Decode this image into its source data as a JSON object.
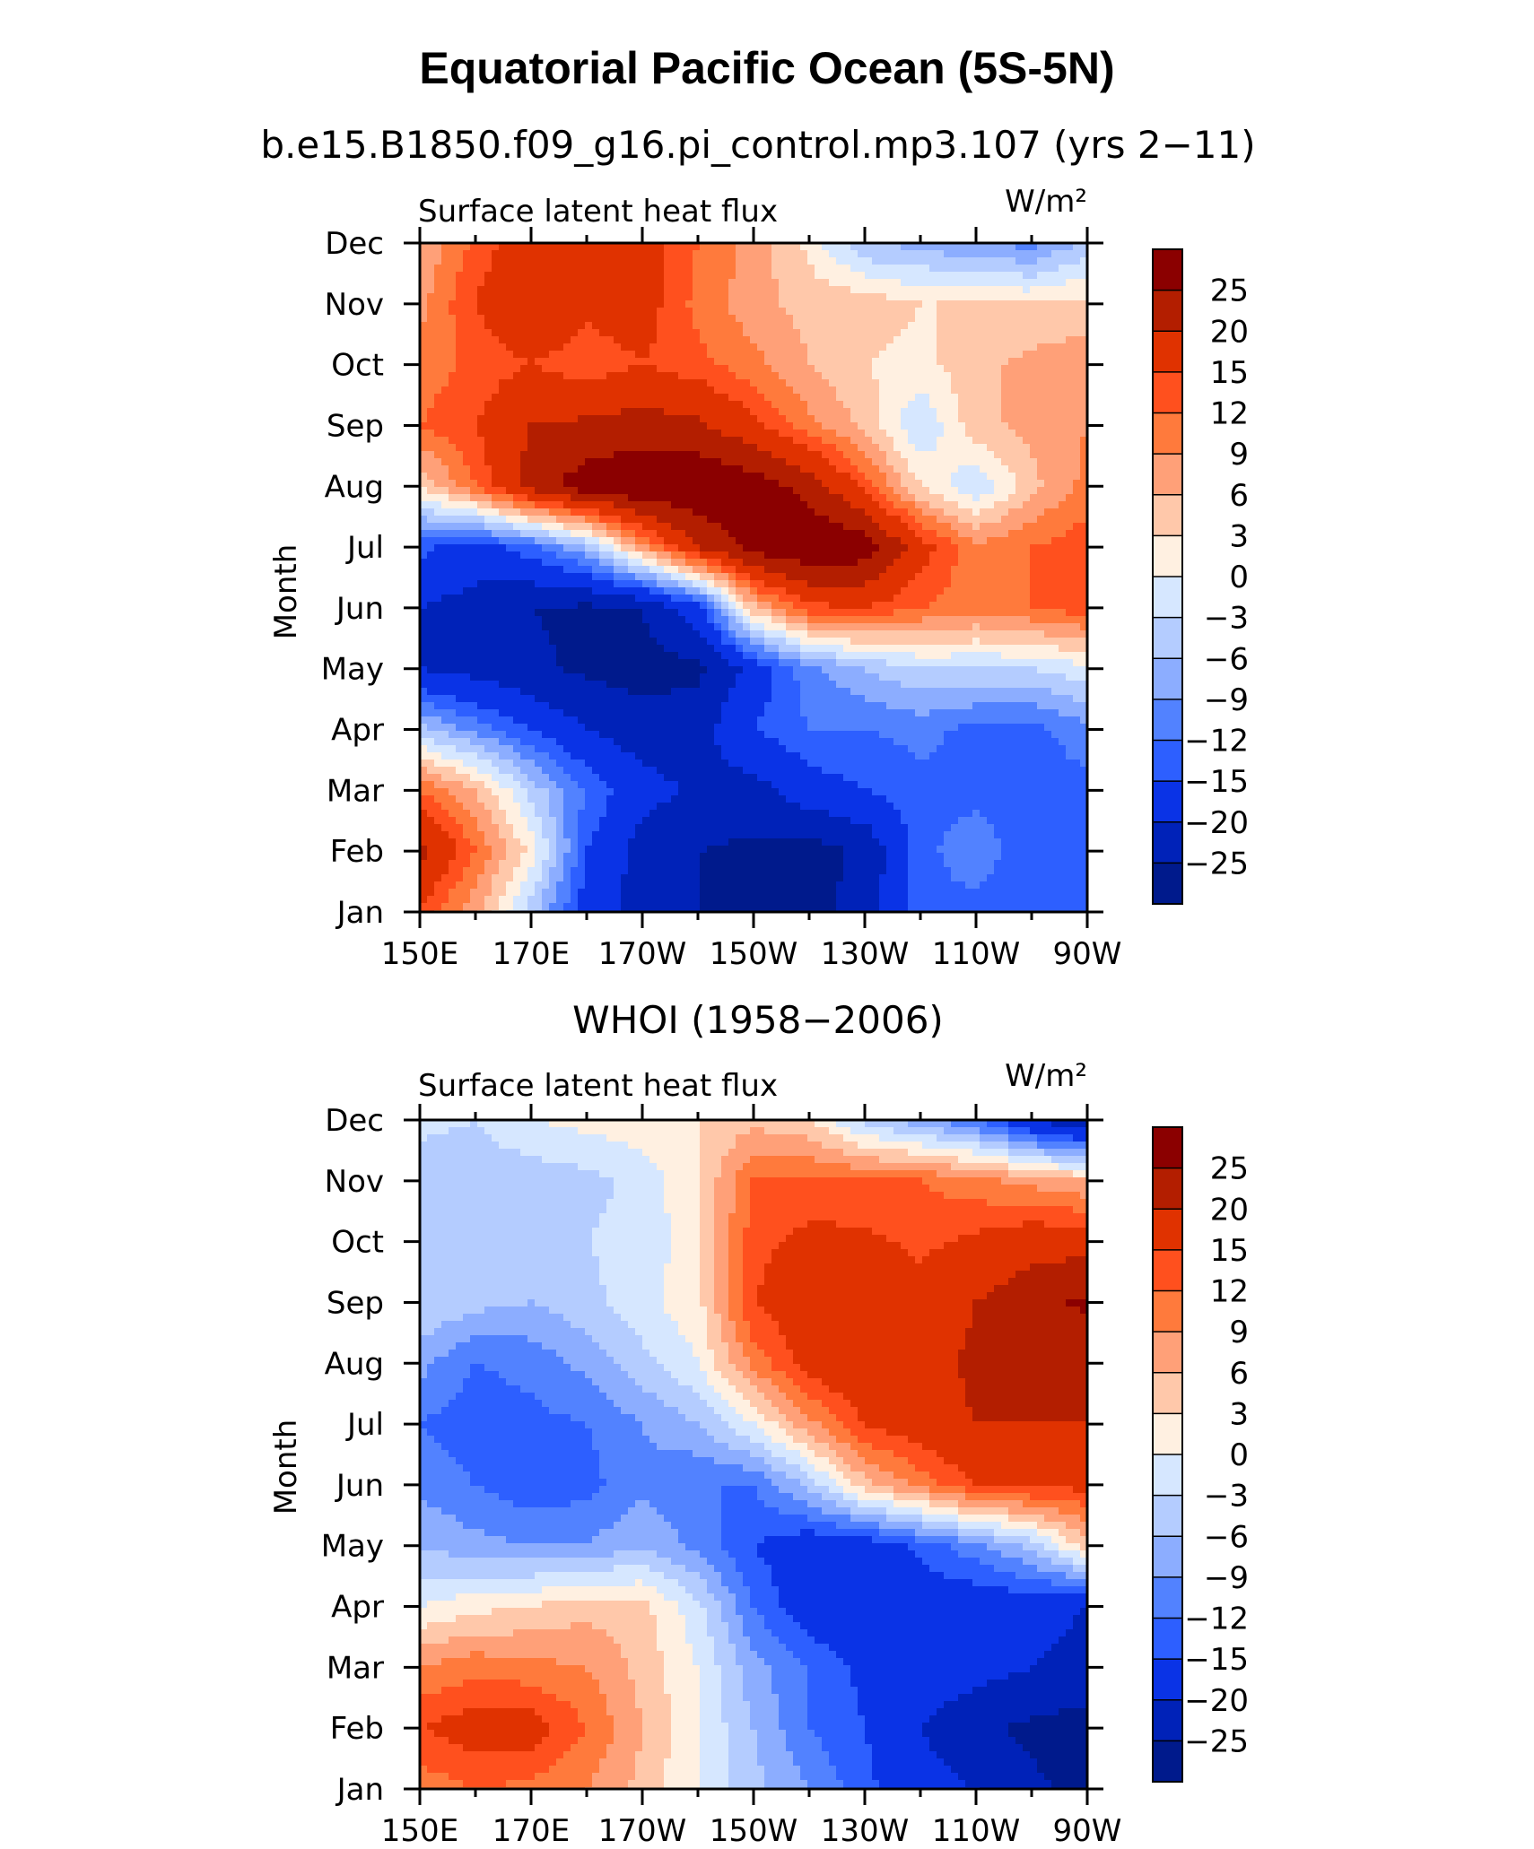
{
  "page": {
    "title": "Equatorial Pacific Ocean (5S-5N)"
  },
  "chart_data": [
    {
      "type": "heatmap",
      "title": "b.e15.B1850.f09_g16.pi_control.mp3.107 (yrs 2−11)",
      "left_label": "Surface latent heat flux",
      "units": "W/m²",
      "ylabel": "Month",
      "x_ticks": [
        "150E",
        "170E",
        "170W",
        "150W",
        "130W",
        "110W",
        "90W"
      ],
      "y_ticks": [
        "Jan",
        "Feb",
        "Mar",
        "Apr",
        "May",
        "Jun",
        "Jul",
        "Aug",
        "Sep",
        "Oct",
        "Nov",
        "Dec"
      ],
      "colorbar": {
        "levels": [
          "25",
          "20",
          "15",
          "12",
          "9",
          "6",
          "3",
          "0",
          "−3",
          "−6",
          "−9",
          "−12",
          "−15",
          "−20",
          "−25"
        ],
        "colors": [
          "#8b0000",
          "#b31e00",
          "#e03200",
          "#ff501e",
          "#ff7a3c",
          "#ffa078",
          "#ffc8aa",
          "#fff0e1",
          "#d6e7ff",
          "#b4ccff",
          "#8cadff",
          "#5282ff",
          "#2d5fff",
          "#0a33e6",
          "#0022b8",
          "#001a8c"
        ]
      },
      "x": [
        150,
        160,
        170,
        180,
        190,
        200,
        210,
        220,
        230,
        240,
        250,
        260,
        270
      ],
      "y": [
        "Jan",
        "Feb",
        "Mar",
        "Apr",
        "May",
        "Jun",
        "Jul",
        "Aug",
        "Sep",
        "Oct",
        "Nov",
        "Dec"
      ],
      "z": [
        [
          14,
          7,
          -5,
          -17,
          -22,
          -25,
          -27,
          -28,
          -22,
          -13,
          -13,
          -15,
          -13
        ],
        [
          22,
          12,
          2,
          -15,
          -22,
          -25,
          -26,
          -27,
          -24,
          -13,
          -10,
          -14,
          -13
        ],
        [
          12,
          6,
          -4,
          -12,
          -18,
          -21,
          -22,
          -17,
          -15,
          -13,
          -13,
          -14,
          -13
        ],
        [
          -5,
          -10,
          -15,
          -20,
          -23,
          -22,
          -15,
          -12,
          -12,
          -11,
          -13,
          -13,
          -10
        ],
        [
          -20,
          -22,
          -24,
          -26,
          -27,
          -26,
          -18,
          -10,
          -6,
          -3,
          -3,
          -3,
          -1
        ],
        [
          -20,
          -22,
          -25,
          -26,
          -25,
          -17,
          5,
          14,
          15,
          12,
          10,
          12,
          14
        ],
        [
          -14,
          -17,
          -13,
          -6,
          8,
          20,
          27,
          30,
          28,
          17,
          10,
          12,
          14
        ],
        [
          3,
          12,
          22,
          28,
          30,
          30,
          28,
          23,
          14,
          3,
          -3,
          5,
          10
        ],
        [
          12,
          15,
          20,
          21,
          22,
          21,
          16,
          10,
          5,
          -3,
          5,
          7,
          9
        ],
        [
          10,
          13,
          15,
          13,
          15,
          13,
          10,
          6,
          3,
          2,
          5,
          7,
          8
        ],
        [
          8,
          15,
          20,
          16,
          17,
          11,
          7,
          5,
          5,
          3,
          3,
          3,
          4
        ],
        [
          6,
          13,
          18,
          19,
          17,
          12,
          8,
          2,
          -6,
          -7,
          -9,
          -10,
          -5
        ]
      ]
    },
    {
      "type": "heatmap",
      "title": "WHOI (1958−2006)",
      "left_label": "Surface latent heat flux",
      "units": "W/m²",
      "ylabel": "Month",
      "x_ticks": [
        "150E",
        "170E",
        "170W",
        "150W",
        "130W",
        "110W",
        "90W"
      ],
      "y_ticks": [
        "Jan",
        "Feb",
        "Mar",
        "Apr",
        "May",
        "Jun",
        "Jul",
        "Aug",
        "Sep",
        "Oct",
        "Nov",
        "Dec"
      ],
      "colorbar": {
        "levels": [
          "25",
          "20",
          "15",
          "12",
          "9",
          "6",
          "3",
          "0",
          "−3",
          "−6",
          "−9",
          "−12",
          "−15",
          "−20",
          "−25"
        ],
        "colors": [
          "#8b0000",
          "#b31e00",
          "#e03200",
          "#ff501e",
          "#ff7a3c",
          "#ffa078",
          "#ffc8aa",
          "#fff0e1",
          "#d6e7ff",
          "#b4ccff",
          "#8cadff",
          "#5282ff",
          "#2d5fff",
          "#0a33e6",
          "#0022b8",
          "#001a8c"
        ]
      },
      "x": [
        150,
        160,
        170,
        180,
        190,
        200,
        210,
        220,
        230,
        240,
        250,
        260,
        270
      ],
      "y": [
        "Jan",
        "Feb",
        "Mar",
        "Apr",
        "May",
        "Jun",
        "Jul",
        "Aug",
        "Sep",
        "Oct",
        "Nov",
        "Dec"
      ],
      "z": [
        [
          10,
          12,
          11,
          9,
          5,
          0,
          -5,
          -9,
          -14,
          -18,
          -20,
          -24,
          -27
        ],
        [
          15,
          17,
          17,
          12,
          6,
          0,
          -6,
          -12,
          -15,
          -20,
          -24,
          -26,
          -27
        ],
        [
          9,
          11,
          10,
          9,
          5,
          0,
          -8,
          -12,
          -16,
          -16,
          -18,
          -20,
          -22
        ],
        [
          0,
          2,
          3,
          5,
          4,
          -2,
          -12,
          -18,
          -20,
          -18,
          -18,
          -18,
          -20
        ],
        [
          -6,
          -8,
          -9,
          -9,
          -6,
          -10,
          -15,
          -18,
          -18,
          -14,
          -10,
          -5,
          5
        ],
        [
          -10,
          -12,
          -14,
          -13,
          -10,
          -12,
          -12,
          -5,
          5,
          10,
          15,
          16,
          16
        ],
        [
          -12,
          -14,
          -13,
          -12,
          -9,
          -6,
          0,
          8,
          15,
          18,
          20,
          20,
          20
        ],
        [
          -8,
          -12,
          -11,
          -8,
          -4,
          0,
          10,
          17,
          20,
          18,
          21,
          22,
          22
        ],
        [
          -3,
          -5,
          -6,
          -4,
          -1,
          2,
          15,
          18,
          20,
          17,
          20,
          23,
          26
        ],
        [
          -3,
          -3,
          -3,
          -3,
          -2,
          2,
          14,
          16,
          16,
          14,
          16,
          18,
          18
        ],
        [
          -5,
          -5,
          -5,
          -4,
          -2,
          3,
          12,
          13,
          12,
          12,
          10,
          8,
          6
        ],
        [
          -2,
          -3,
          0,
          1,
          2,
          3,
          5,
          3,
          -4,
          -8,
          -12,
          -20,
          -25
        ]
      ]
    }
  ]
}
